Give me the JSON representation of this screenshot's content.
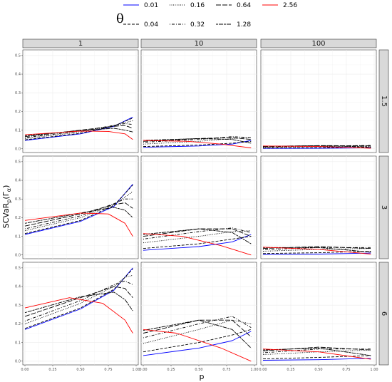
{
  "chart_data": {
    "type": "line",
    "legend": {
      "title": "θ",
      "placement": "top",
      "entries": [
        {
          "label": "0.01",
          "color": "#0000ff",
          "dash": "solid"
        },
        {
          "label": "0.04",
          "color": "#000000",
          "dash": "dashed"
        },
        {
          "label": "0.16",
          "color": "#000000",
          "dash": "dotted"
        },
        {
          "label": "0.32",
          "color": "#000000",
          "dash": "dotdash"
        },
        {
          "label": "0.64",
          "color": "#000000",
          "dash": "longdash"
        },
        {
          "label": "1.28",
          "color": "#000000",
          "dash": "twodash"
        },
        {
          "label": "2.56",
          "color": "#ff0000",
          "dash": "solid"
        }
      ]
    },
    "xlabel": "p",
    "ylabel": "SCVaR",
    "ylabel_sub": "p",
    "ylabel_arg": "(Γ",
    "ylabel_arg_sub": "α",
    "ylabel_close": ")",
    "x_ticks": [
      "0.00",
      "0.25",
      "0.50",
      "0.75",
      "1.00"
    ],
    "y_ticks": [
      "0.0",
      "0.1",
      "0.2",
      "0.3",
      "0.4",
      "0.5"
    ],
    "xlim": [
      0,
      1
    ],
    "ylim": [
      -0.02,
      0.53
    ],
    "grid": true,
    "columns": [
      "1",
      "10",
      "100"
    ],
    "rows": [
      "1.5",
      "3",
      "6"
    ],
    "panels": [
      {
        "row": "1.5",
        "col": "1",
        "series": [
          {
            "theta": "0.01",
            "p": [
              0,
              0.5,
              0.8,
              0.97
            ],
            "y": [
              0.045,
              0.08,
              0.12,
              0.17
            ]
          },
          {
            "theta": "0.04",
            "p": [
              0,
              0.5,
              0.8,
              0.97
            ],
            "y": [
              0.048,
              0.083,
              0.122,
              0.165
            ]
          },
          {
            "theta": "0.16",
            "p": [
              0,
              0.5,
              0.8,
              0.9,
              0.97
            ],
            "y": [
              0.055,
              0.09,
              0.125,
              0.14,
              0.15
            ]
          },
          {
            "theta": "0.32",
            "p": [
              0,
              0.5,
              0.8,
              0.9,
              0.97
            ],
            "y": [
              0.06,
              0.095,
              0.125,
              0.135,
              0.13
            ]
          },
          {
            "theta": "0.64",
            "p": [
              0,
              0.5,
              0.8,
              0.9,
              0.97
            ],
            "y": [
              0.065,
              0.1,
              0.12,
              0.125,
              0.11
            ]
          },
          {
            "theta": "1.28",
            "p": [
              0,
              0.5,
              0.8,
              0.9,
              0.97
            ],
            "y": [
              0.07,
              0.098,
              0.11,
              0.1,
              0.09
            ]
          },
          {
            "theta": "2.56",
            "p": [
              0,
              0.5,
              0.75,
              0.9,
              0.97
            ],
            "y": [
              0.075,
              0.095,
              0.093,
              0.08,
              0.05
            ]
          }
        ]
      },
      {
        "row": "1.5",
        "col": "10",
        "series": [
          {
            "theta": "0.01",
            "p": [
              0,
              0.5,
              0.8,
              0.97
            ],
            "y": [
              0.008,
              0.015,
              0.025,
              0.045
            ]
          },
          {
            "theta": "0.04",
            "p": [
              0,
              0.5,
              0.8,
              0.97
            ],
            "y": [
              0.012,
              0.02,
              0.03,
              0.04
            ]
          },
          {
            "theta": "0.16",
            "p": [
              0,
              0.5,
              0.8,
              0.97
            ],
            "y": [
              0.025,
              0.04,
              0.055,
              0.06
            ]
          },
          {
            "theta": "0.32",
            "p": [
              0,
              0.5,
              0.8,
              0.97
            ],
            "y": [
              0.035,
              0.05,
              0.065,
              0.06
            ]
          },
          {
            "theta": "0.64",
            "p": [
              0,
              0.5,
              0.8,
              0.97
            ],
            "y": [
              0.04,
              0.055,
              0.06,
              0.05
            ]
          },
          {
            "theta": "1.28",
            "p": [
              0,
              0.5,
              0.8,
              0.97
            ],
            "y": [
              0.045,
              0.055,
              0.05,
              0.03
            ]
          },
          {
            "theta": "2.56",
            "p": [
              0,
              0.4,
              0.7,
              0.97
            ],
            "y": [
              0.045,
              0.04,
              0.025,
              0.005
            ]
          }
        ]
      },
      {
        "row": "1.5",
        "col": "100",
        "series": [
          {
            "theta": "0.01",
            "p": [
              0,
              0.5,
              0.97
            ],
            "y": [
              0.002,
              0.003,
              0.005
            ]
          },
          {
            "theta": "0.04",
            "p": [
              0,
              0.5,
              0.97
            ],
            "y": [
              0.004,
              0.006,
              0.008
            ]
          },
          {
            "theta": "0.16",
            "p": [
              0,
              0.5,
              0.97
            ],
            "y": [
              0.008,
              0.012,
              0.015
            ]
          },
          {
            "theta": "0.32",
            "p": [
              0,
              0.5,
              0.97
            ],
            "y": [
              0.01,
              0.015,
              0.018
            ]
          },
          {
            "theta": "0.64",
            "p": [
              0,
              0.5,
              0.97
            ],
            "y": [
              0.012,
              0.017,
              0.016
            ]
          },
          {
            "theta": "1.28",
            "p": [
              0,
              0.5,
              0.97
            ],
            "y": [
              0.014,
              0.016,
              0.01
            ]
          },
          {
            "theta": "2.56",
            "p": [
              0,
              0.5,
              0.97
            ],
            "y": [
              0.015,
              0.012,
              0.003
            ]
          }
        ]
      },
      {
        "row": "3",
        "col": "1",
        "series": [
          {
            "theta": "0.01",
            "p": [
              0,
              0.5,
              0.8,
              0.97
            ],
            "y": [
              0.11,
              0.18,
              0.26,
              0.38
            ]
          },
          {
            "theta": "0.04",
            "p": [
              0,
              0.5,
              0.8,
              0.97
            ],
            "y": [
              0.115,
              0.185,
              0.265,
              0.375
            ]
          },
          {
            "theta": "0.16",
            "p": [
              0,
              0.5,
              0.8,
              0.9,
              0.97
            ],
            "y": [
              0.13,
              0.2,
              0.27,
              0.31,
              0.34
            ]
          },
          {
            "theta": "0.32",
            "p": [
              0,
              0.5,
              0.8,
              0.9,
              0.97
            ],
            "y": [
              0.14,
              0.21,
              0.275,
              0.3,
              0.3
            ]
          },
          {
            "theta": "0.64",
            "p": [
              0,
              0.5,
              0.8,
              0.9,
              0.97
            ],
            "y": [
              0.155,
              0.22,
              0.27,
              0.28,
              0.25
            ]
          },
          {
            "theta": "1.28",
            "p": [
              0,
              0.5,
              0.8,
              0.9,
              0.97
            ],
            "y": [
              0.17,
              0.225,
              0.255,
              0.24,
              0.2
            ]
          },
          {
            "theta": "2.56",
            "p": [
              0,
              0.5,
              0.75,
              0.9,
              0.97
            ],
            "y": [
              0.185,
              0.225,
              0.22,
              0.17,
              0.1
            ]
          }
        ]
      },
      {
        "row": "3",
        "col": "10",
        "series": [
          {
            "theta": "0.01",
            "p": [
              0,
              0.5,
              0.8,
              0.97
            ],
            "y": [
              0.025,
              0.045,
              0.07,
              0.11
            ]
          },
          {
            "theta": "0.04",
            "p": [
              0,
              0.5,
              0.8,
              0.97
            ],
            "y": [
              0.035,
              0.06,
              0.085,
              0.1
            ]
          },
          {
            "theta": "0.16",
            "p": [
              0,
              0.5,
              0.8,
              0.97
            ],
            "y": [
              0.065,
              0.1,
              0.125,
              0.13
            ]
          },
          {
            "theta": "0.32",
            "p": [
              0,
              0.5,
              0.8,
              0.97
            ],
            "y": [
              0.085,
              0.125,
              0.145,
              0.12
            ]
          },
          {
            "theta": "0.64",
            "p": [
              0,
              0.5,
              0.8,
              0.97
            ],
            "y": [
              0.1,
              0.14,
              0.14,
              0.1
            ]
          },
          {
            "theta": "1.28",
            "p": [
              0,
              0.5,
              0.8,
              0.97
            ],
            "y": [
              0.11,
              0.14,
              0.12,
              0.06
            ]
          },
          {
            "theta": "2.56",
            "p": [
              0,
              0.35,
              0.7,
              0.97
            ],
            "y": [
              0.115,
              0.1,
              0.05,
              0.0
            ]
          }
        ]
      },
      {
        "row": "3",
        "col": "100",
        "series": [
          {
            "theta": "0.01",
            "p": [
              0,
              0.5,
              0.97
            ],
            "y": [
              0.003,
              0.005,
              0.01
            ]
          },
          {
            "theta": "0.04",
            "p": [
              0,
              0.5,
              0.97
            ],
            "y": [
              0.008,
              0.012,
              0.02
            ]
          },
          {
            "theta": "0.16",
            "p": [
              0,
              0.5,
              0.97
            ],
            "y": [
              0.02,
              0.03,
              0.035
            ]
          },
          {
            "theta": "0.32",
            "p": [
              0,
              0.5,
              0.97
            ],
            "y": [
              0.028,
              0.04,
              0.04
            ]
          },
          {
            "theta": "0.64",
            "p": [
              0,
              0.5,
              0.97
            ],
            "y": [
              0.035,
              0.045,
              0.035
            ]
          },
          {
            "theta": "1.28",
            "p": [
              0,
              0.5,
              0.97
            ],
            "y": [
              0.04,
              0.04,
              0.015
            ]
          },
          {
            "theta": "2.56",
            "p": [
              0,
              0.5,
              0.97
            ],
            "y": [
              0.042,
              0.03,
              0.005
            ]
          }
        ]
      },
      {
        "row": "6",
        "col": "1",
        "series": [
          {
            "theta": "0.01",
            "p": [
              0,
              0.5,
              0.8,
              0.97
            ],
            "y": [
              0.17,
              0.28,
              0.38,
              0.5
            ]
          },
          {
            "theta": "0.04",
            "p": [
              0,
              0.5,
              0.8,
              0.97
            ],
            "y": [
              0.175,
              0.285,
              0.385,
              0.495
            ]
          },
          {
            "theta": "0.16",
            "p": [
              0,
              0.5,
              0.8,
              0.9,
              0.97
            ],
            "y": [
              0.2,
              0.31,
              0.4,
              0.45,
              0.46
            ]
          },
          {
            "theta": "0.32",
            "p": [
              0,
              0.5,
              0.8,
              0.9,
              0.97
            ],
            "y": [
              0.215,
              0.325,
              0.41,
              0.43,
              0.41
            ]
          },
          {
            "theta": "0.64",
            "p": [
              0,
              0.5,
              0.8,
              0.9,
              0.97
            ],
            "y": [
              0.24,
              0.34,
              0.4,
              0.39,
              0.34
            ]
          },
          {
            "theta": "1.28",
            "p": [
              0,
              0.5,
              0.8,
              0.9,
              0.97
            ],
            "y": [
              0.26,
              0.345,
              0.37,
              0.33,
              0.27
            ]
          },
          {
            "theta": "2.56",
            "p": [
              0,
              0.4,
              0.7,
              0.9,
              0.97
            ],
            "y": [
              0.285,
              0.34,
              0.31,
              0.22,
              0.15
            ]
          }
        ]
      },
      {
        "row": "6",
        "col": "10",
        "series": [
          {
            "theta": "0.01",
            "p": [
              0,
              0.5,
              0.8,
              0.97
            ],
            "y": [
              0.03,
              0.07,
              0.11,
              0.16
            ]
          },
          {
            "theta": "0.04",
            "p": [
              0,
              0.5,
              0.8,
              0.97
            ],
            "y": [
              0.05,
              0.1,
              0.14,
              0.17
            ]
          },
          {
            "theta": "0.16",
            "p": [
              0,
              0.5,
              0.8,
              0.97
            ],
            "y": [
              0.095,
              0.17,
              0.22,
              0.2
            ]
          },
          {
            "theta": "0.32",
            "p": [
              0,
              0.5,
              0.8,
              0.97
            ],
            "y": [
              0.125,
              0.2,
              0.24,
              0.18
            ]
          },
          {
            "theta": "0.64",
            "p": [
              0,
              0.5,
              0.8,
              0.97
            ],
            "y": [
              0.15,
              0.22,
              0.22,
              0.13
            ]
          },
          {
            "theta": "1.28",
            "p": [
              0,
              0.5,
              0.8,
              0.97
            ],
            "y": [
              0.165,
              0.22,
              0.17,
              0.07
            ]
          },
          {
            "theta": "2.56",
            "p": [
              0,
              0.3,
              0.7,
              0.97
            ],
            "y": [
              0.17,
              0.15,
              0.07,
              0.0
            ]
          }
        ]
      },
      {
        "row": "6",
        "col": "100",
        "series": [
          {
            "theta": "0.01",
            "p": [
              0,
              0.5,
              0.97
            ],
            "y": [
              0.005,
              0.008,
              0.015
            ]
          },
          {
            "theta": "0.04",
            "p": [
              0,
              0.5,
              0.97
            ],
            "y": [
              0.012,
              0.02,
              0.03
            ]
          },
          {
            "theta": "0.16",
            "p": [
              0,
              0.5,
              0.97
            ],
            "y": [
              0.035,
              0.05,
              0.06
            ]
          },
          {
            "theta": "0.32",
            "p": [
              0,
              0.5,
              0.97
            ],
            "y": [
              0.045,
              0.065,
              0.065
            ]
          },
          {
            "theta": "0.64",
            "p": [
              0,
              0.5,
              0.97
            ],
            "y": [
              0.055,
              0.075,
              0.06
            ]
          },
          {
            "theta": "1.28",
            "p": [
              0,
              0.5,
              0.97
            ],
            "y": [
              0.06,
              0.07,
              0.03
            ]
          },
          {
            "theta": "2.56",
            "p": [
              0,
              0.5,
              0.97
            ],
            "y": [
              0.065,
              0.05,
              0.01
            ]
          }
        ]
      }
    ]
  }
}
